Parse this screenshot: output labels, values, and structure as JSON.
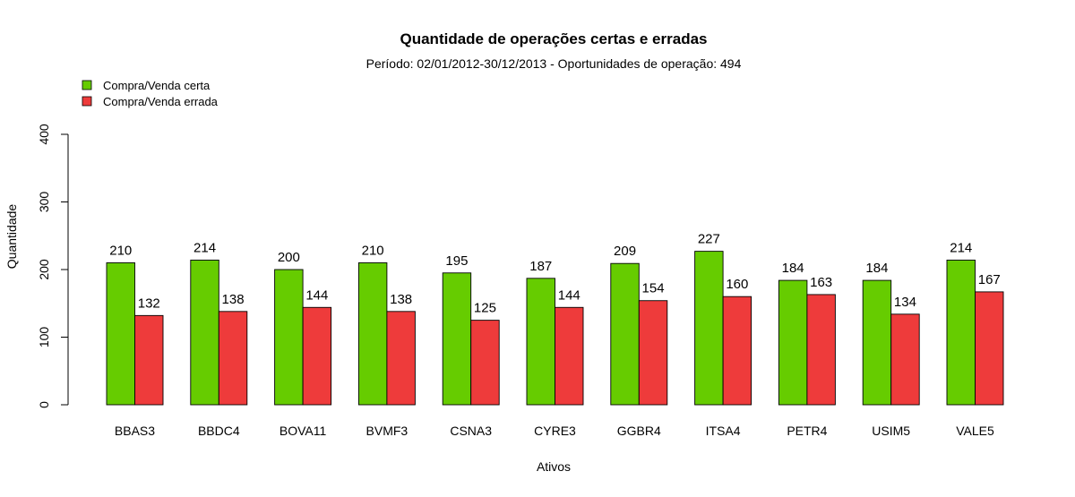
{
  "chart_data": {
    "type": "bar",
    "title": "Quantidade de operações certas e erradas",
    "subtitle": "Período: 02/01/2012-30/12/2013 - Oportunidades de operação: 494",
    "xlabel": "Ativos",
    "ylabel": "Quantidade",
    "ylim": [
      0,
      400
    ],
    "yticks": [
      "0",
      "100",
      "200",
      "300",
      "400"
    ],
    "categories": [
      "BBAS3",
      "BBDC4",
      "BOVA11",
      "BVMF3",
      "CSNA3",
      "CYRE3",
      "GGBR4",
      "ITSA4",
      "PETR4",
      "USIM5",
      "VALE5"
    ],
    "series": [
      {
        "name": "Compra/Venda certa",
        "color": "#66cc00",
        "values": [
          210,
          214,
          200,
          210,
          195,
          187,
          209,
          227,
          184,
          184,
          214
        ]
      },
      {
        "name": "Compra/Venda errada",
        "color": "#ee3b3b",
        "values": [
          132,
          138,
          144,
          138,
          125,
          144,
          154,
          160,
          163,
          134,
          167
        ]
      }
    ],
    "legend_position": "top-left",
    "grid": false,
    "data_labels": true
  }
}
